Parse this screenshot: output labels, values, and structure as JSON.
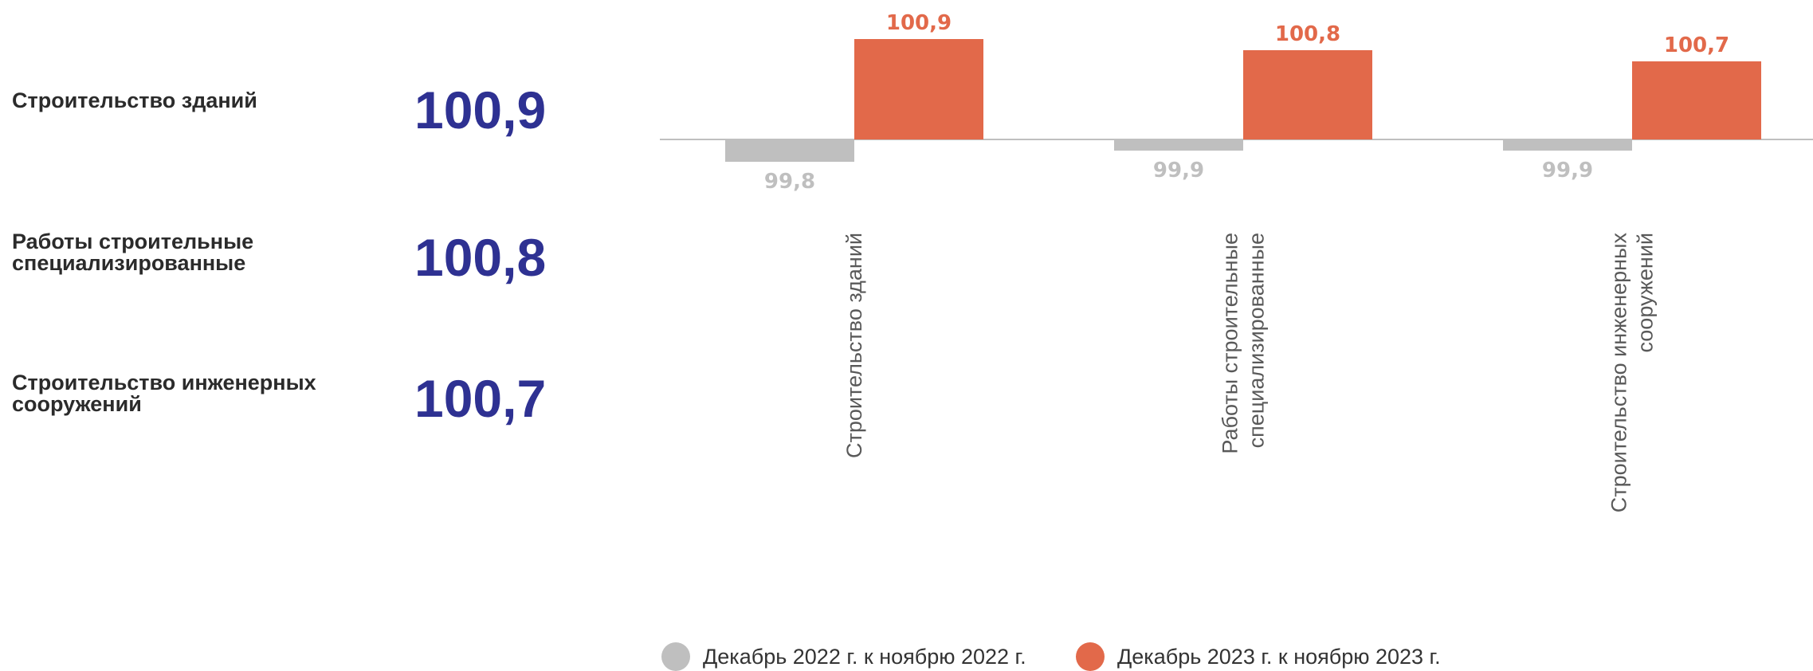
{
  "summary": [
    {
      "label": "Строительство зданий",
      "value": "100,9"
    },
    {
      "label": "Работы строительные\nспециализированные",
      "value": "100,8"
    },
    {
      "label": "Строительство инженерных\nсооружений",
      "value": "100,7"
    }
  ],
  "chart_data": {
    "type": "bar",
    "baseline": 100,
    "categories": [
      "Строительство зданий",
      "Работы строительные\nспециализированные",
      "Строительство инженерных\nсооружений"
    ],
    "series": [
      {
        "name": "Декабрь 2022 г. к ноябрю 2022 г.",
        "values": [
          99.8,
          99.9,
          99.9
        ],
        "labels": [
          "99,8",
          "99,9",
          "99,9"
        ],
        "color": "#bfbfbf"
      },
      {
        "name": "Декабрь 2023 г. к ноябрю 2023 г.",
        "values": [
          100.9,
          100.8,
          100.7
        ],
        "labels": [
          "100,9",
          "100,8",
          "100,7"
        ],
        "color": "#e2694a"
      }
    ],
    "legend_position": "bottom",
    "grid": false
  },
  "colors": {
    "accent": "#2e3192",
    "orange": "#e2694a",
    "gray": "#bfbfbf"
  }
}
